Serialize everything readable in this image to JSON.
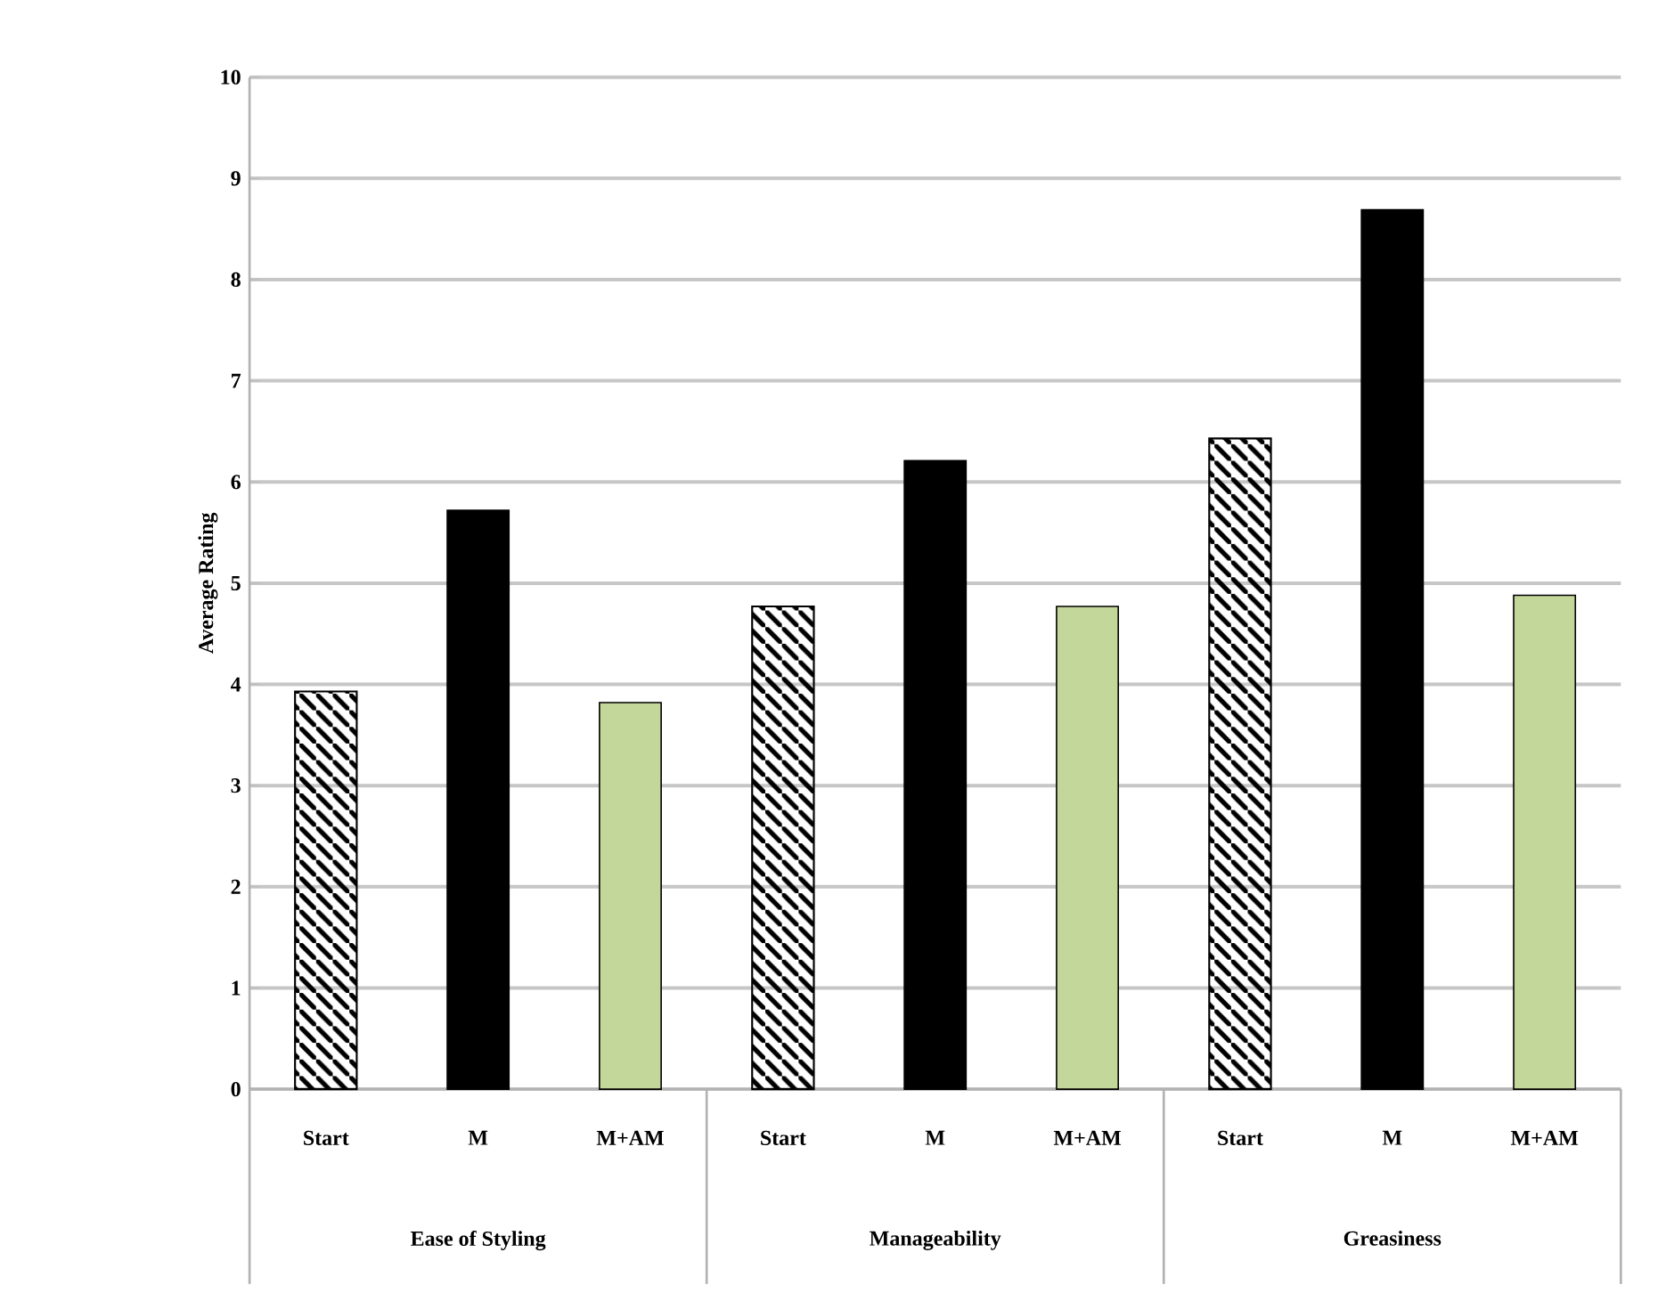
{
  "chart_data": {
    "type": "bar",
    "ylabel": "Average Rating",
    "categories": [
      "Ease of Styling",
      "Manageability",
      "Greasiness"
    ],
    "series": [
      {
        "name": "Start",
        "color": "#000000",
        "values": [
          3.93,
          4.77,
          6.43
        ]
      },
      {
        "name": "M",
        "color": "#000000",
        "values": [
          5.72,
          6.21,
          8.69
        ]
      },
      {
        "name": "M+AM",
        "color": "#c4d79b",
        "values": [
          3.82,
          4.77,
          4.88
        ]
      }
    ],
    "ylim": [
      0,
      10
    ],
    "yticks": [
      0,
      1,
      2,
      3,
      4,
      5,
      6,
      7,
      8,
      9,
      10
    ],
    "grid": "y"
  }
}
